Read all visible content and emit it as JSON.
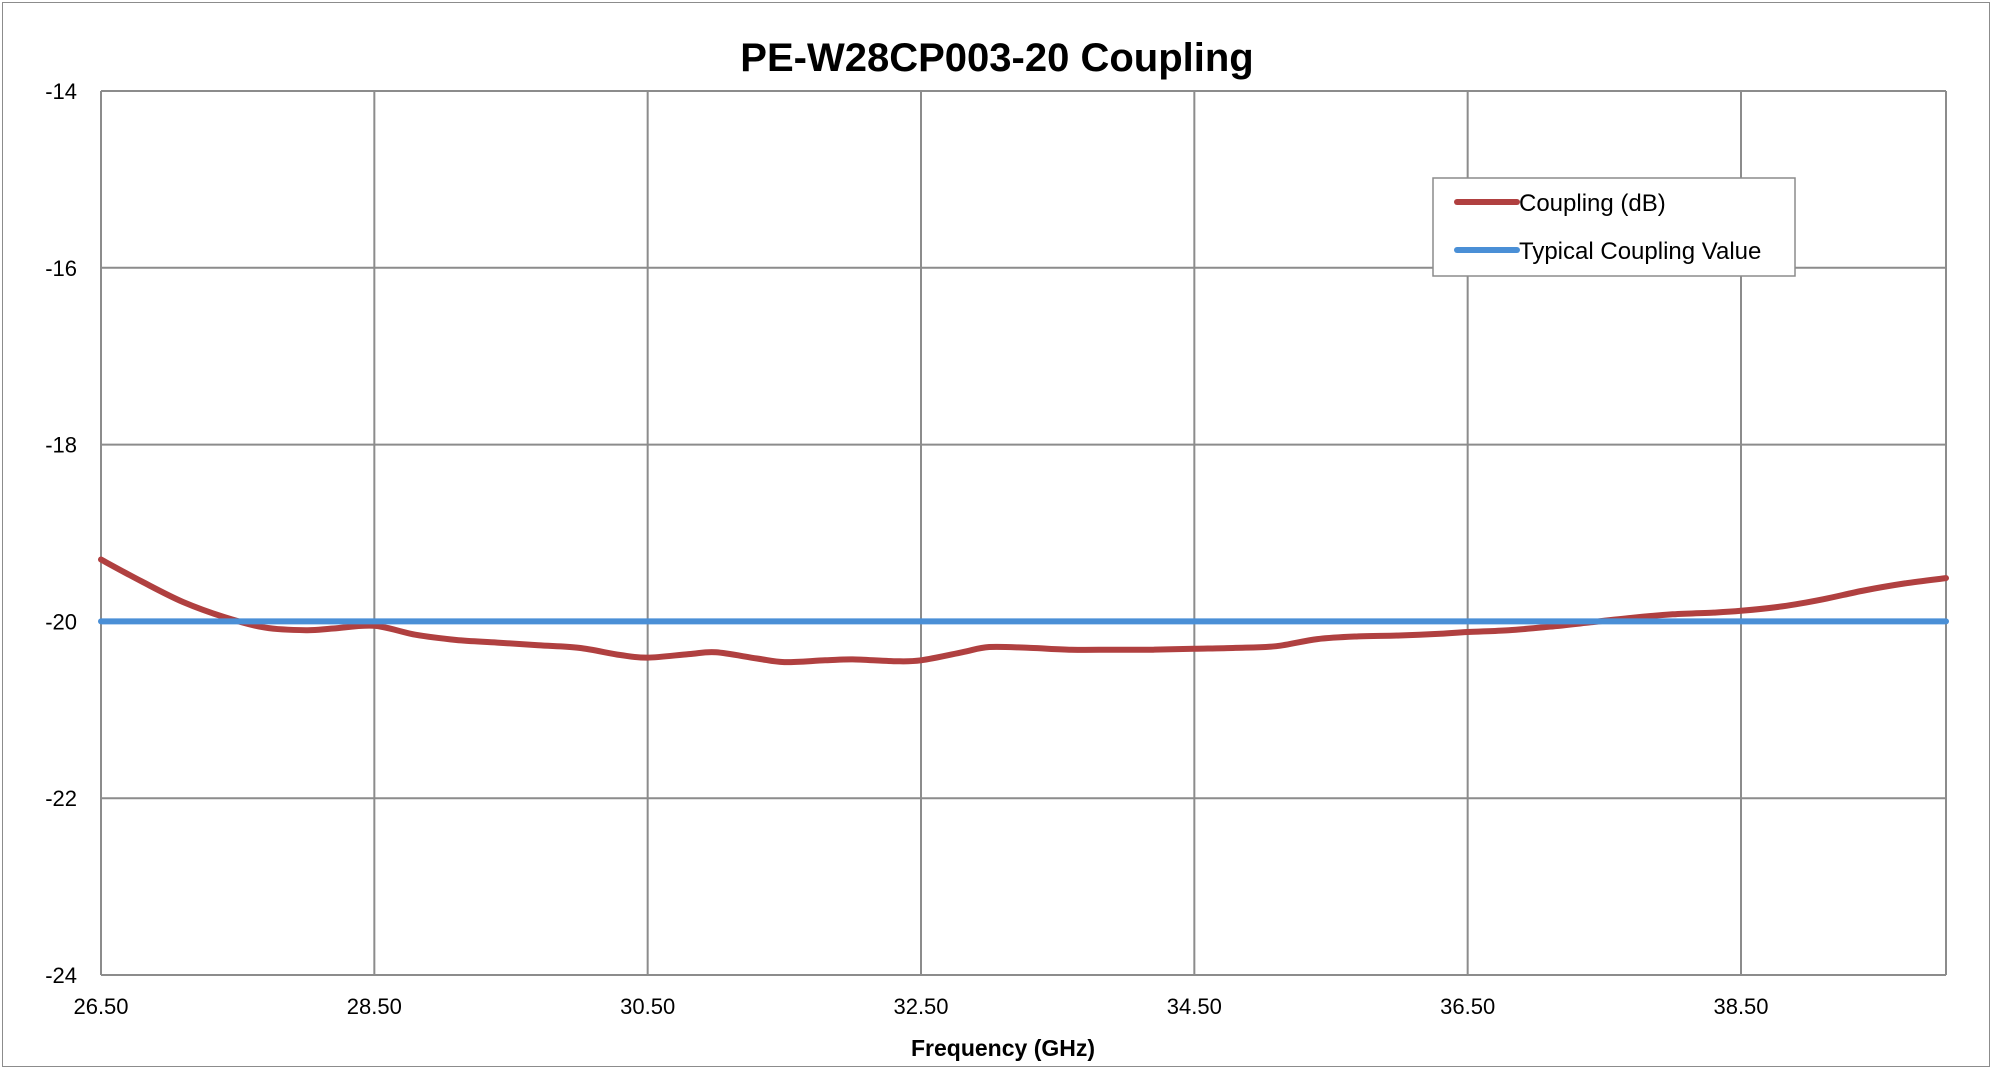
{
  "chart_data": {
    "type": "line",
    "title": "PE-W28CP003-20 Coupling",
    "xlabel": "Frequency (GHz)",
    "ylabel": "",
    "xlim": [
      26.5,
      40.0
    ],
    "ylim": [
      -24,
      -14
    ],
    "x_ticks": [
      "26.50",
      "28.50",
      "30.50",
      "32.50",
      "34.50",
      "36.50",
      "38.50"
    ],
    "y_ticks": [
      "-14",
      "-16",
      "-18",
      "-20",
      "-22",
      "-24"
    ],
    "grid": true,
    "legend_position": "top-right",
    "series": [
      {
        "name": "Coupling (dB)",
        "color": "#b04040",
        "x": [
          26.5,
          26.8,
          27.1,
          27.4,
          27.7,
          28.0,
          28.2,
          28.5,
          28.8,
          29.1,
          29.4,
          29.7,
          30.0,
          30.3,
          30.5,
          30.8,
          31.0,
          31.3,
          31.5,
          31.8,
          32.0,
          32.3,
          32.5,
          32.8,
          33.0,
          33.3,
          33.6,
          33.9,
          34.2,
          34.5,
          34.8,
          35.1,
          35.4,
          35.7,
          36.0,
          36.3,
          36.5,
          36.8,
          37.1,
          37.4,
          37.7,
          38.0,
          38.3,
          38.5,
          38.8,
          39.1,
          39.4,
          39.7,
          40.0
        ],
        "values": [
          -19.3,
          -19.55,
          -19.78,
          -19.95,
          -20.07,
          -20.1,
          -20.08,
          -20.05,
          -20.15,
          -20.21,
          -20.24,
          -20.27,
          -20.3,
          -20.38,
          -20.41,
          -20.37,
          -20.35,
          -20.42,
          -20.46,
          -20.44,
          -20.43,
          -20.45,
          -20.44,
          -20.35,
          -20.29,
          -20.3,
          -20.32,
          -20.32,
          -20.32,
          -20.31,
          -20.3,
          -20.28,
          -20.2,
          -20.17,
          -20.16,
          -20.14,
          -20.12,
          -20.1,
          -20.06,
          -20.01,
          -19.96,
          -19.92,
          -19.9,
          -19.88,
          -19.83,
          -19.75,
          -19.65,
          -19.57,
          -19.51
        ]
      },
      {
        "name": "Typical Coupling Value",
        "color": "#4a8fd6",
        "x": [
          26.5,
          40.0
        ],
        "values": [
          -20,
          -20
        ]
      }
    ]
  }
}
